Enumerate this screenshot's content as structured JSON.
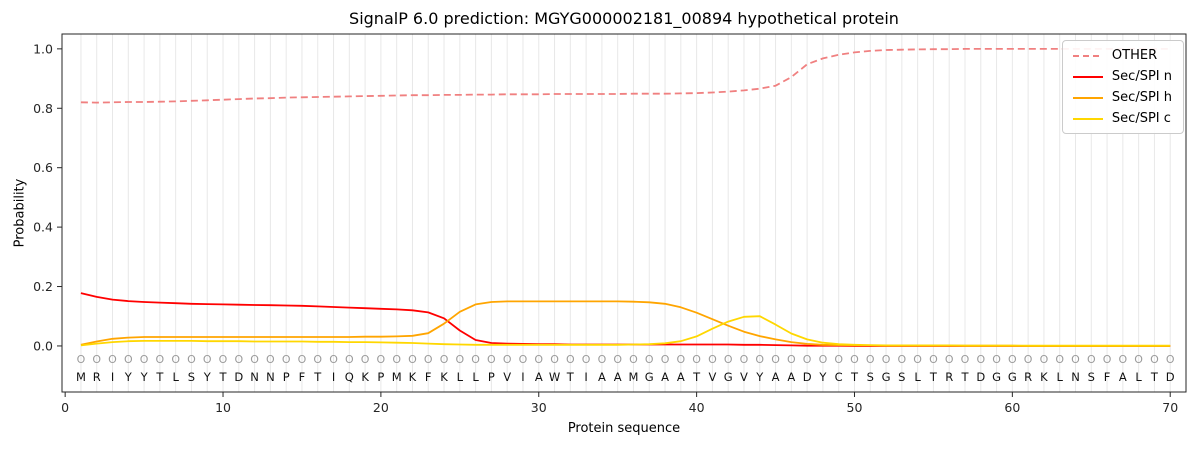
{
  "sequence": "MRIYYTLSYTDNNPFTIQKPMKFKLLPVIAWTIAAMGAATVGVYAADYCTSGSLTRTDGGRKLNSFALTD",
  "position_labels": "OOOOOOOOOOOOOOOOOOOOOOOOOOOOOOOOOOOOOOOOOOOOOOOOOOOOOOOOOOOOOOOOOOOOOO",
  "legend": [
    {
      "label": "OTHER",
      "color": "#f08080",
      "dashed": true
    },
    {
      "label": "Sec/SPI n",
      "color": "#ff0000",
      "dashed": false
    },
    {
      "label": "Sec/SPI h",
      "color": "#ffa500",
      "dashed": false
    },
    {
      "label": "Sec/SPI c",
      "color": "#ffd700",
      "dashed": false
    }
  ],
  "chart_data": {
    "type": "line",
    "title": "SignalP 6.0 prediction: MGYG000002181_00894 hypothetical protein",
    "xlabel": "Protein sequence",
    "ylabel": "Probability",
    "xlim": [
      -0.2,
      71.0
    ],
    "ylim": [
      -0.155,
      1.05
    ],
    "xticks": [
      0,
      10,
      20,
      30,
      40,
      50,
      60,
      70
    ],
    "yticks": [
      0.0,
      0.2,
      0.4,
      0.6,
      0.8,
      1.0
    ],
    "grid": "vertical-per-position",
    "legend_position": "upper right",
    "x": [
      1,
      2,
      3,
      4,
      5,
      6,
      7,
      8,
      9,
      10,
      11,
      12,
      13,
      14,
      15,
      16,
      17,
      18,
      19,
      20,
      21,
      22,
      23,
      24,
      25,
      26,
      27,
      28,
      29,
      30,
      31,
      32,
      33,
      34,
      35,
      36,
      37,
      38,
      39,
      40,
      41,
      42,
      43,
      44,
      45,
      46,
      47,
      48,
      49,
      50,
      51,
      52,
      53,
      54,
      55,
      56,
      57,
      58,
      59,
      60,
      61,
      62,
      63,
      64,
      65,
      66,
      67,
      68,
      69,
      70
    ],
    "series": [
      {
        "name": "OTHER",
        "color": "#f08080",
        "dashed": true,
        "values": [
          0.82,
          0.819,
          0.82,
          0.821,
          0.821,
          0.822,
          0.823,
          0.825,
          0.827,
          0.829,
          0.831,
          0.833,
          0.834,
          0.836,
          0.837,
          0.838,
          0.839,
          0.84,
          0.841,
          0.842,
          0.843,
          0.844,
          0.844,
          0.845,
          0.845,
          0.846,
          0.846,
          0.847,
          0.847,
          0.847,
          0.848,
          0.848,
          0.848,
          0.848,
          0.848,
          0.849,
          0.849,
          0.849,
          0.85,
          0.851,
          0.853,
          0.856,
          0.86,
          0.866,
          0.876,
          0.905,
          0.948,
          0.968,
          0.98,
          0.988,
          0.993,
          0.996,
          0.997,
          0.998,
          0.999,
          0.999,
          1.0,
          1.0,
          1.0,
          1.0,
          1.0,
          1.0,
          1.0,
          1.0,
          1.0,
          1.0,
          1.0,
          1.0,
          1.0,
          1.0
        ]
      },
      {
        "name": "Sec/SPI n",
        "color": "#ff0000",
        "dashed": false,
        "values": [
          0.178,
          0.165,
          0.156,
          0.151,
          0.148,
          0.146,
          0.144,
          0.142,
          0.141,
          0.14,
          0.139,
          0.138,
          0.137,
          0.136,
          0.135,
          0.133,
          0.131,
          0.129,
          0.127,
          0.125,
          0.123,
          0.12,
          0.113,
          0.093,
          0.052,
          0.02,
          0.01,
          0.008,
          0.007,
          0.006,
          0.006,
          0.005,
          0.005,
          0.005,
          0.005,
          0.005,
          0.005,
          0.005,
          0.005,
          0.005,
          0.005,
          0.005,
          0.004,
          0.004,
          0.003,
          0.002,
          0.001,
          0.001,
          0.001,
          0.0,
          0.0,
          0.0,
          0.0,
          0.0,
          0.0,
          0.0,
          0.0,
          0.0,
          0.0,
          0.0,
          0.0,
          0.0,
          0.0,
          0.0,
          0.0,
          0.0,
          0.0,
          0.0,
          0.0,
          0.0
        ]
      },
      {
        "name": "Sec/SPI h",
        "color": "#ffa500",
        "dashed": false,
        "values": [
          0.004,
          0.015,
          0.024,
          0.028,
          0.03,
          0.03,
          0.03,
          0.03,
          0.03,
          0.03,
          0.03,
          0.03,
          0.03,
          0.03,
          0.03,
          0.03,
          0.03,
          0.03,
          0.031,
          0.031,
          0.032,
          0.034,
          0.043,
          0.075,
          0.115,
          0.14,
          0.148,
          0.15,
          0.15,
          0.15,
          0.15,
          0.15,
          0.15,
          0.15,
          0.15,
          0.149,
          0.147,
          0.142,
          0.13,
          0.112,
          0.09,
          0.068,
          0.048,
          0.033,
          0.022,
          0.013,
          0.007,
          0.004,
          0.003,
          0.002,
          0.002,
          0.001,
          0.001,
          0.001,
          0.001,
          0.001,
          0.001,
          0.001,
          0.001,
          0.001,
          0.0,
          0.0,
          0.0,
          0.0,
          0.0,
          0.0,
          0.0,
          0.0,
          0.0,
          0.0
        ]
      },
      {
        "name": "Sec/SPI c",
        "color": "#ffd700",
        "dashed": false,
        "values": [
          0.002,
          0.008,
          0.013,
          0.016,
          0.017,
          0.017,
          0.017,
          0.017,
          0.016,
          0.016,
          0.016,
          0.015,
          0.015,
          0.015,
          0.015,
          0.014,
          0.014,
          0.013,
          0.013,
          0.012,
          0.011,
          0.01,
          0.008,
          0.006,
          0.005,
          0.004,
          0.004,
          0.004,
          0.004,
          0.004,
          0.004,
          0.004,
          0.004,
          0.004,
          0.004,
          0.005,
          0.006,
          0.009,
          0.016,
          0.032,
          0.058,
          0.082,
          0.098,
          0.1,
          0.072,
          0.042,
          0.022,
          0.011,
          0.006,
          0.004,
          0.003,
          0.002,
          0.002,
          0.002,
          0.002,
          0.002,
          0.001,
          0.001,
          0.001,
          0.001,
          0.001,
          0.001,
          0.001,
          0.001,
          0.001,
          0.001,
          0.001,
          0.001,
          0.001,
          0.001
        ]
      }
    ]
  }
}
